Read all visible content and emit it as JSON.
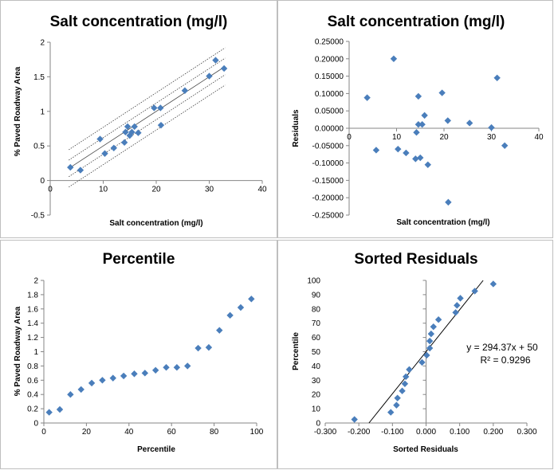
{
  "chart_data": [
    {
      "id": "c1",
      "type": "scatter",
      "title": "Salt concentration (mg/l)",
      "xlabel": "Salt concentration  (mg/l)",
      "ylabel": "% Paved Roadway Area",
      "xlim": [
        0,
        40
      ],
      "ylim": [
        -0.5,
        2
      ],
      "xticks": [
        0,
        10,
        20,
        30,
        40
      ],
      "yticks": [
        -0.5,
        0,
        0.5,
        1,
        1.5,
        2
      ],
      "xtick_labels": [
        "0",
        "10",
        "20",
        "30",
        "40"
      ],
      "ytick_labels": [
        "-0.5",
        "0",
        "0.5",
        "1",
        "1.5",
        "2"
      ],
      "points": [
        [
          3.8,
          0.19
        ],
        [
          5.7,
          0.15
        ],
        [
          9.4,
          0.6
        ],
        [
          10.3,
          0.39
        ],
        [
          12,
          0.47
        ],
        [
          14,
          0.55
        ],
        [
          14.2,
          0.7
        ],
        [
          14.6,
          0.78
        ],
        [
          15,
          0.65
        ],
        [
          15.4,
          0.7
        ],
        [
          15.9,
          0.78
        ],
        [
          16.6,
          0.69
        ],
        [
          19.6,
          1.05
        ],
        [
          20.8,
          1.05
        ],
        [
          20.9,
          0.8
        ],
        [
          25.4,
          1.3
        ],
        [
          30,
          1.51
        ],
        [
          31.2,
          1.74
        ],
        [
          32.8,
          1.62
        ]
      ],
      "regression": {
        "slope": 0.05,
        "intercept": 0
      },
      "confidence_band": [
        -0.12,
        0.12
      ],
      "prediction_band": [
        -0.27,
        0.27
      ]
    },
    {
      "id": "c2",
      "type": "scatter",
      "title": "Salt concentration (mg/l)",
      "xlabel": "Salt concentration (mg/l)",
      "ylabel": "Residuals",
      "xlim": [
        0,
        40
      ],
      "ylim": [
        -0.25,
        0.25
      ],
      "xticks": [
        0,
        10,
        20,
        30,
        40
      ],
      "yticks": [
        -0.25,
        -0.2,
        -0.15,
        -0.1,
        -0.05,
        0,
        0.05,
        0.1,
        0.15,
        0.2,
        0.25
      ],
      "xtick_labels": [
        "0",
        "10",
        "20",
        "30",
        "40"
      ],
      "ytick_labels": [
        "-0.25000",
        "-0.20000",
        "-0.15000",
        "-0.10000",
        "-0.05000",
        "0.00000",
        "0.05000",
        "0.10000",
        "0.15000",
        "0.20000",
        "0.25000"
      ],
      "points": [
        [
          3.8,
          0.088
        ],
        [
          5.7,
          -0.063
        ],
        [
          9.4,
          0.2
        ],
        [
          10.3,
          -0.06
        ],
        [
          12,
          -0.071
        ],
        [
          14,
          -0.088
        ],
        [
          14.2,
          -0.012
        ],
        [
          14.6,
          0.092
        ],
        [
          14.6,
          0.011
        ],
        [
          15,
          -0.085
        ],
        [
          15.4,
          0.011
        ],
        [
          15.9,
          0.037
        ],
        [
          16.6,
          -0.105
        ],
        [
          19.6,
          0.102
        ],
        [
          20.8,
          0.022
        ],
        [
          20.9,
          -0.213
        ],
        [
          25.4,
          0.015
        ],
        [
          30,
          0.002
        ],
        [
          31.2,
          0.145
        ],
        [
          32.8,
          -0.05
        ]
      ]
    },
    {
      "id": "c3",
      "type": "scatter",
      "title": "Percentile",
      "xlabel": "Percentile",
      "ylabel": "% Paved Roadway Area",
      "xlim": [
        0,
        100
      ],
      "ylim": [
        0,
        2
      ],
      "xticks": [
        0,
        20,
        40,
        60,
        80,
        100
      ],
      "yticks": [
        0,
        0.2,
        0.4,
        0.6,
        0.8,
        1,
        1.2,
        1.4,
        1.6,
        1.8,
        2
      ],
      "xtick_labels": [
        "0",
        "20",
        "40",
        "60",
        "80",
        "100"
      ],
      "ytick_labels": [
        "0",
        "0.2",
        "0.4",
        "0.6",
        "0.8",
        "1",
        "1.2",
        "1.4",
        "1.6",
        "1.8",
        "2"
      ],
      "points": [
        [
          2.5,
          0.15
        ],
        [
          7.5,
          0.19
        ],
        [
          12.5,
          0.4
        ],
        [
          17.5,
          0.47
        ],
        [
          22.5,
          0.56
        ],
        [
          27.5,
          0.6
        ],
        [
          32.5,
          0.63
        ],
        [
          37.5,
          0.66
        ],
        [
          42.5,
          0.69
        ],
        [
          47.5,
          0.7
        ],
        [
          52.5,
          0.74
        ],
        [
          57.5,
          0.78
        ],
        [
          62.5,
          0.78
        ],
        [
          67.5,
          0.8
        ],
        [
          72.5,
          1.05
        ],
        [
          77.5,
          1.06
        ],
        [
          82.5,
          1.3
        ],
        [
          87.5,
          1.51
        ],
        [
          92.5,
          1.62
        ],
        [
          97.5,
          1.74
        ]
      ]
    },
    {
      "id": "c4",
      "type": "scatter",
      "title": "Sorted Residuals",
      "xlabel": "Sorted Residuals",
      "ylabel": "Percentile",
      "xlim": [
        -0.3,
        0.3
      ],
      "ylim": [
        0,
        100
      ],
      "xticks": [
        -0.3,
        -0.2,
        -0.1,
        0,
        0.1,
        0.2,
        0.3
      ],
      "yticks": [
        0,
        10,
        20,
        30,
        40,
        50,
        60,
        70,
        80,
        90,
        100
      ],
      "xtick_labels": [
        "-0.300",
        "-0.200",
        "-0.100",
        "0.000",
        "0.100",
        "0.200",
        "0.300"
      ],
      "ytick_labels": [
        "0",
        "10",
        "20",
        "30",
        "40",
        "50",
        "60",
        "70",
        "80",
        "90",
        "100"
      ],
      "points": [
        [
          -0.213,
          2.5
        ],
        [
          -0.105,
          7.5
        ],
        [
          -0.088,
          12.5
        ],
        [
          -0.085,
          17.5
        ],
        [
          -0.071,
          22.5
        ],
        [
          -0.063,
          27.5
        ],
        [
          -0.06,
          32.5
        ],
        [
          -0.05,
          37.5
        ],
        [
          -0.012,
          42.5
        ],
        [
          0.002,
          47.5
        ],
        [
          0.011,
          52.5
        ],
        [
          0.011,
          57.5
        ],
        [
          0.015,
          62.5
        ],
        [
          0.022,
          67.5
        ],
        [
          0.037,
          72.5
        ],
        [
          0.088,
          77.5
        ],
        [
          0.092,
          82.5
        ],
        [
          0.102,
          87.5
        ],
        [
          0.145,
          92.5
        ],
        [
          0.2,
          97.5
        ]
      ],
      "trendline": {
        "slope": 294.37,
        "intercept": 50
      },
      "equation": "y = 294.37x + 50",
      "r_squared": "R² = 0.9296"
    }
  ]
}
